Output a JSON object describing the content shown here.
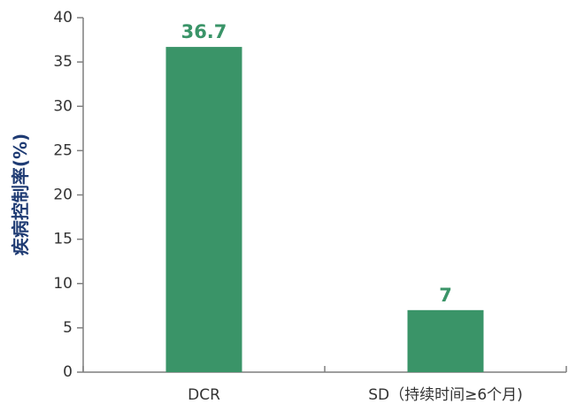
{
  "chart_data": {
    "type": "bar",
    "title": "",
    "xlabel": "",
    "ylabel": "疾病控制率(%)",
    "categories": [
      "DCR",
      "SD（持续时间≥6个月)"
    ],
    "values": [
      36.7,
      7
    ],
    "data_labels": [
      "36.7",
      "7"
    ],
    "ylim": [
      0,
      40
    ],
    "yticks": [
      0,
      5,
      10,
      15,
      20,
      25,
      30,
      35,
      40
    ],
    "ytick_labels": [
      "0",
      "5",
      "10",
      "15",
      "20",
      "25",
      "30",
      "35",
      "40"
    ],
    "grid": false,
    "legend": "none"
  },
  "colors": {
    "bar": "#3a9468",
    "data_label": "#3a9468",
    "ylabel": "#1f3b73",
    "axis": "#7f7f7f"
  }
}
